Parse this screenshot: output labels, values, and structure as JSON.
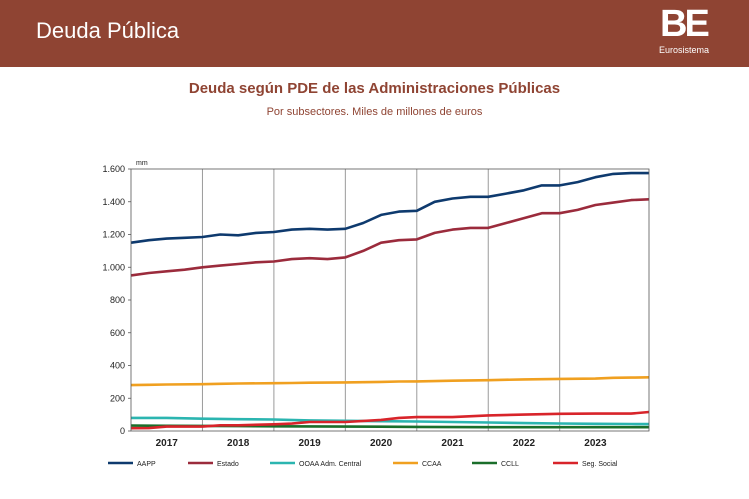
{
  "header": {
    "title": "Deuda Pública",
    "logo_text": "BE",
    "logo_subtext": "Eurosistema"
  },
  "colors": {
    "banner": "#8f4433",
    "title": "#8f4433"
  },
  "chart_data": {
    "type": "line",
    "title": "Deuda según PDE de las Administraciones Públicas",
    "subtitle": "Por subsectores. Miles de millones de euros",
    "unit_label": "mm",
    "xlabel": "",
    "ylabel": "",
    "ylim": [
      0,
      1600
    ],
    "yticks": [
      0,
      200,
      400,
      600,
      800,
      1000,
      1200,
      1400,
      1600
    ],
    "ytick_labels": [
      "0",
      "200",
      "400",
      "600",
      "800",
      "1.000",
      "1.200",
      "1.400",
      "1.600"
    ],
    "xlim": [
      2016.5,
      2023.75
    ],
    "year_labels": [
      "2017",
      "2018",
      "2019",
      "2020",
      "2021",
      "2022",
      "2023"
    ],
    "year_boundaries": [
      2017.5,
      2018.5,
      2019.5,
      2020.5,
      2021.5,
      2022.5
    ],
    "grid": "vertical year separators",
    "legend_position": "bottom",
    "series": [
      {
        "name": "AAPP",
        "color": "#0e3a6e",
        "x": [
          2016.5,
          2016.75,
          2017.0,
          2017.25,
          2017.5,
          2017.75,
          2018.0,
          2018.25,
          2018.5,
          2018.75,
          2019.0,
          2019.25,
          2019.5,
          2019.75,
          2020.0,
          2020.25,
          2020.5,
          2020.75,
          2021.0,
          2021.25,
          2021.5,
          2021.75,
          2022.0,
          2022.25,
          2022.5,
          2022.75,
          2023.0,
          2023.25,
          2023.5,
          2023.75
        ],
        "values": [
          1150,
          1165,
          1175,
          1180,
          1185,
          1200,
          1195,
          1210,
          1215,
          1230,
          1235,
          1230,
          1235,
          1270,
          1320,
          1340,
          1345,
          1400,
          1420,
          1430,
          1430,
          1450,
          1470,
          1500,
          1500,
          1520,
          1550,
          1570,
          1575,
          1575
        ]
      },
      {
        "name": "Estado",
        "color": "#9b2b3c",
        "x": [
          2016.5,
          2016.75,
          2017.0,
          2017.25,
          2017.5,
          2017.75,
          2018.0,
          2018.25,
          2018.5,
          2018.75,
          2019.0,
          2019.25,
          2019.5,
          2019.75,
          2020.0,
          2020.25,
          2020.5,
          2020.75,
          2021.0,
          2021.25,
          2021.5,
          2021.75,
          2022.0,
          2022.25,
          2022.5,
          2022.75,
          2023.0,
          2023.25,
          2023.5,
          2023.75
        ],
        "values": [
          950,
          965,
          975,
          985,
          1000,
          1010,
          1020,
          1030,
          1035,
          1050,
          1055,
          1050,
          1060,
          1100,
          1150,
          1165,
          1170,
          1210,
          1230,
          1240,
          1240,
          1270,
          1300,
          1330,
          1330,
          1350,
          1380,
          1395,
          1410,
          1415
        ]
      },
      {
        "name": "OOAA Adm. Central",
        "color": "#2bb5b0",
        "x": [
          2016.5,
          2017.0,
          2017.5,
          2018.0,
          2018.5,
          2019.0,
          2019.5,
          2020.0,
          2020.5,
          2021.0,
          2021.5,
          2022.0,
          2022.5,
          2023.0,
          2023.5,
          2023.75
        ],
        "values": [
          80,
          80,
          75,
          72,
          70,
          65,
          62,
          60,
          58,
          55,
          52,
          48,
          46,
          44,
          43,
          42
        ]
      },
      {
        "name": "CCAA",
        "color": "#f0a020",
        "x": [
          2016.5,
          2016.75,
          2017.0,
          2017.5,
          2017.75,
          2018.0,
          2018.5,
          2018.75,
          2019.0,
          2019.5,
          2020.0,
          2020.25,
          2020.5,
          2020.75,
          2021.0,
          2021.5,
          2022.0,
          2022.5,
          2023.0,
          2023.25,
          2023.5,
          2023.75
        ],
        "values": [
          280,
          282,
          284,
          286,
          288,
          290,
          292,
          293,
          295,
          297,
          300,
          302,
          303,
          305,
          307,
          310,
          315,
          318,
          320,
          325,
          326,
          328
        ]
      },
      {
        "name": "CCLL",
        "color": "#1a6e2a",
        "x": [
          2016.5,
          2017.0,
          2017.5,
          2018.0,
          2018.5,
          2019.0,
          2019.5,
          2020.0,
          2020.5,
          2021.0,
          2021.5,
          2022.0,
          2022.5,
          2023.0,
          2023.5,
          2023.75
        ],
        "values": [
          33,
          32,
          31,
          30,
          29,
          28,
          27,
          26,
          25,
          24,
          23,
          23,
          23,
          23,
          23,
          23
        ]
      },
      {
        "name": "Seg. Social",
        "color": "#d8242a",
        "x": [
          2016.5,
          2016.75,
          2017.0,
          2017.5,
          2017.75,
          2018.0,
          2018.5,
          2018.75,
          2019.0,
          2019.5,
          2020.0,
          2020.25,
          2020.5,
          2020.75,
          2021.0,
          2021.5,
          2022.0,
          2022.5,
          2023.0,
          2023.25,
          2023.5,
          2023.75
        ],
        "values": [
          17,
          18,
          27,
          27,
          35,
          35,
          41,
          45,
          55,
          55,
          68,
          80,
          85,
          85,
          85,
          95,
          100,
          105,
          106,
          106,
          106,
          116
        ]
      }
    ]
  }
}
